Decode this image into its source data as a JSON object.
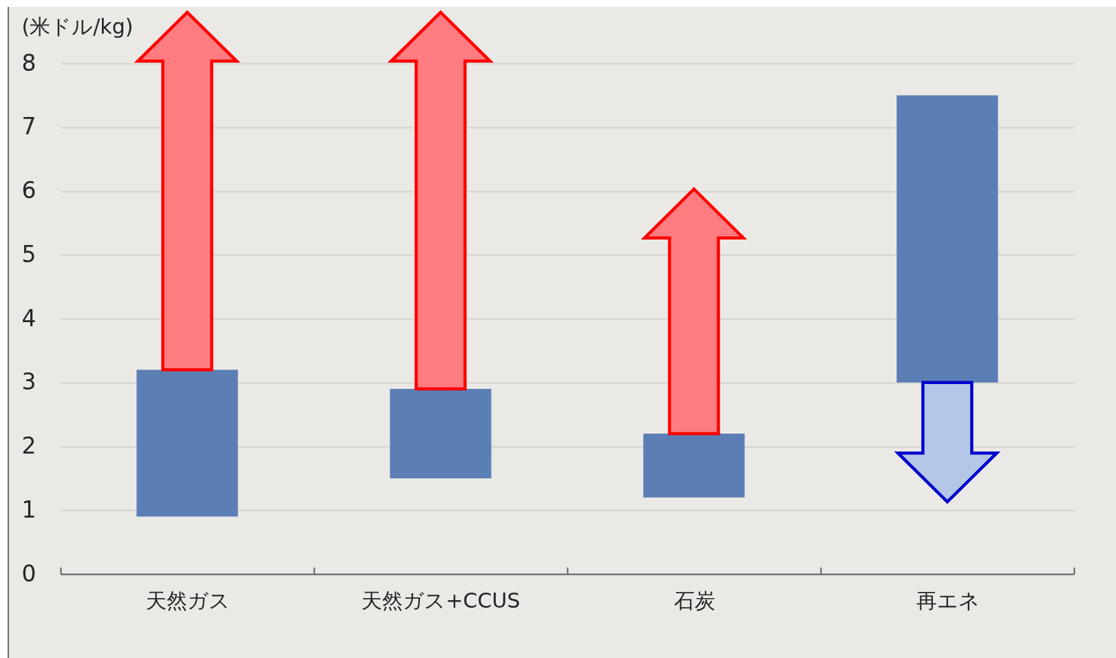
{
  "chart_data": {
    "type": "bar",
    "ylabel": "(米ドル/kg)",
    "categories": [
      "天然ガス",
      "天然ガス+CCUS",
      "石炭",
      "再エネ"
    ],
    "base": [
      0.9,
      1.5,
      1.2,
      3.0
    ],
    "values": [
      2.3,
      1.4,
      1.0,
      4.5
    ],
    "color": "#5b7fb5",
    "ylim": [
      0,
      8
    ],
    "yticks": [
      0,
      1,
      2,
      3,
      4,
      5,
      6,
      7,
      8
    ],
    "grid": "y"
  }
}
